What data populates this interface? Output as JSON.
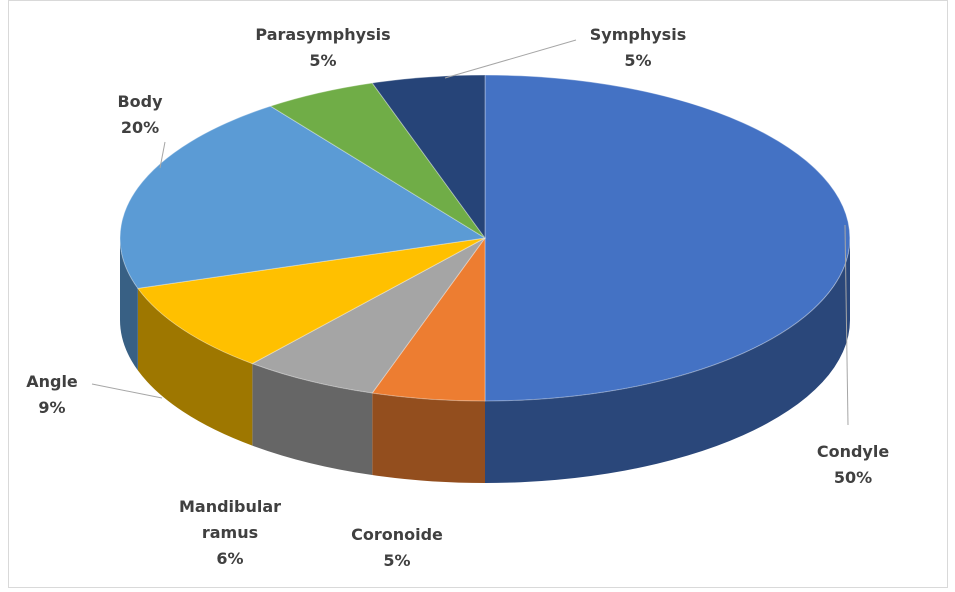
{
  "chart_data": {
    "type": "pie3d",
    "categories": [
      "Condyle",
      "Coronoide",
      "Mandibular ramus",
      "Angle",
      "Body",
      "Parasymphysis",
      "Symphysis"
    ],
    "values": [
      50,
      5,
      6,
      9,
      20,
      5,
      5
    ],
    "value_labels": [
      "50%",
      "5%",
      "6%",
      "9%",
      "20%",
      "5%",
      "5%"
    ],
    "colors": [
      "#4472c4",
      "#ed7d31",
      "#a5a5a5",
      "#ffc000",
      "#5b9bd5",
      "#70ad47",
      "#264478"
    ]
  }
}
